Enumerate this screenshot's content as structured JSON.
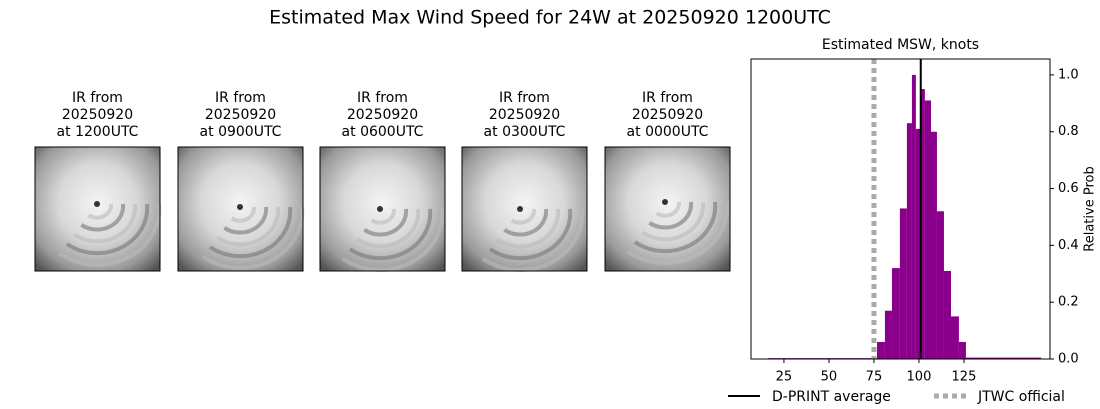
{
  "title": "Estimated Max Wind Speed for 24W at 20250920 1200UTC",
  "panels": [
    {
      "caption": [
        "IR from",
        "20250920",
        "at 1200UTC"
      ]
    },
    {
      "caption": [
        "IR from",
        "20250920",
        "at 0900UTC"
      ]
    },
    {
      "caption": [
        "IR from",
        "20250920",
        "at 0600UTC"
      ]
    },
    {
      "caption": [
        "IR from",
        "20250920",
        "at 0300UTC"
      ]
    },
    {
      "caption": [
        "IR from",
        "20250920",
        "at 0000UTC"
      ]
    }
  ],
  "chart_data": {
    "type": "histogram",
    "title": "Estimated MSW, knots",
    "y_label": "Relative Prob",
    "color": "#8b008b",
    "bins": [
      16,
      76.7,
      81.1,
      85,
      89.4,
      93.3,
      96.1,
      98.3,
      100.6,
      103.3,
      106.7,
      110,
      113.9,
      117.8,
      122.2,
      126.1,
      167.8
    ],
    "values": [
      0.003,
      0.06,
      0.17,
      0.32,
      0.53,
      0.83,
      1.0,
      0.81,
      0.95,
      0.91,
      0.8,
      0.52,
      0.31,
      0.15,
      0.06,
      0.005
    ],
    "xlim": [
      6.7,
      172.8
    ],
    "xticks": [
      25,
      50,
      75,
      100,
      125
    ],
    "ylim": [
      0,
      1.056
    ],
    "yticks": [
      {
        "value": 0,
        "label": "0.0"
      },
      0.2,
      0.4,
      0.6,
      0.8,
      {
        "value": 1,
        "label": "1.0"
      }
    ],
    "y_axis_side": "right",
    "lines": [
      {
        "name": "D-PRINT average",
        "value": 101,
        "color": "#000000",
        "style": "solid"
      },
      {
        "name": "JTWC official",
        "value": 75,
        "color": "#aaaaaa",
        "style": "dotted"
      }
    ]
  }
}
